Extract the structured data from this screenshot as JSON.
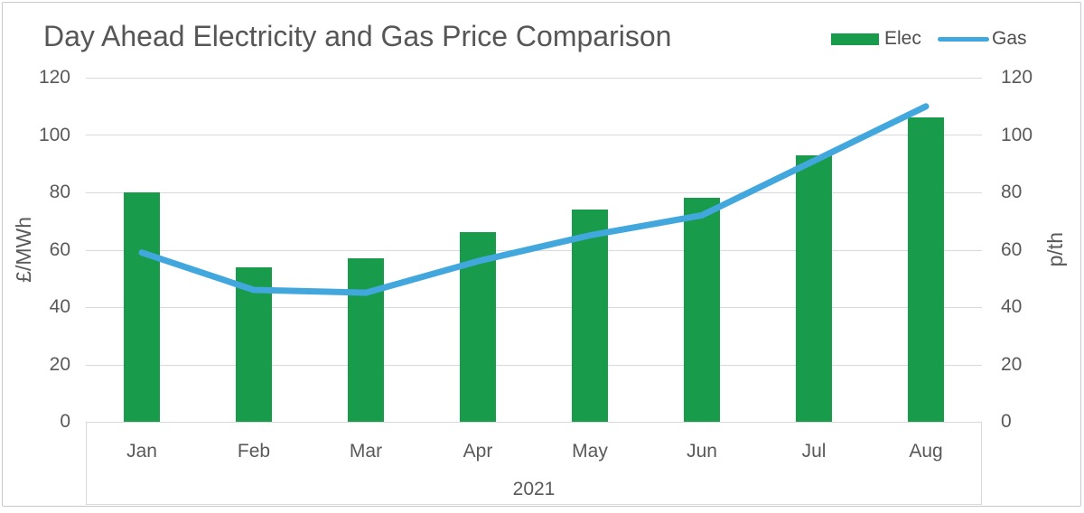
{
  "title": "Day Ahead Electricity and Gas Price Comparison",
  "legend": {
    "entries": [
      {
        "label": "Elec",
        "swatch": "bar-swatch"
      },
      {
        "label": "Gas",
        "swatch": "line-swatch"
      }
    ]
  },
  "axes": {
    "left_title": "£/MWh",
    "right_title": "p/th",
    "group_label": "2021"
  },
  "colors": {
    "elec": "#189B4A",
    "gas": "#41A7DC",
    "gridline": "#D9D9D9",
    "axis_text": "#595959",
    "title_text": "#565656",
    "frame": "#C9C9C9"
  },
  "chart_data": {
    "type": "combo",
    "title": "Day Ahead Electricity and Gas Price Comparison",
    "categories": [
      "Jan",
      "Feb",
      "Mar",
      "Apr",
      "May",
      "Jun",
      "Jul",
      "Aug"
    ],
    "x_group_label": "2021",
    "series": [
      {
        "name": "Elec",
        "type": "bar",
        "axis": "left",
        "unit": "£/MWh",
        "color": "#189B4A",
        "values": [
          80,
          54,
          57,
          66,
          74,
          78,
          93,
          106
        ]
      },
      {
        "name": "Gas",
        "type": "line",
        "axis": "right",
        "unit": "p/th",
        "color": "#41A7DC",
        "values": [
          59,
          46,
          45,
          56,
          65,
          72,
          91,
          110
        ]
      }
    ],
    "ylabel_left": "£/MWh",
    "ylabel_right": "p/th",
    "ylim": [
      0,
      120
    ],
    "yticks": [
      0,
      20,
      40,
      60,
      80,
      100,
      120
    ],
    "grid": "horizontal",
    "legend_position": "top-right"
  }
}
